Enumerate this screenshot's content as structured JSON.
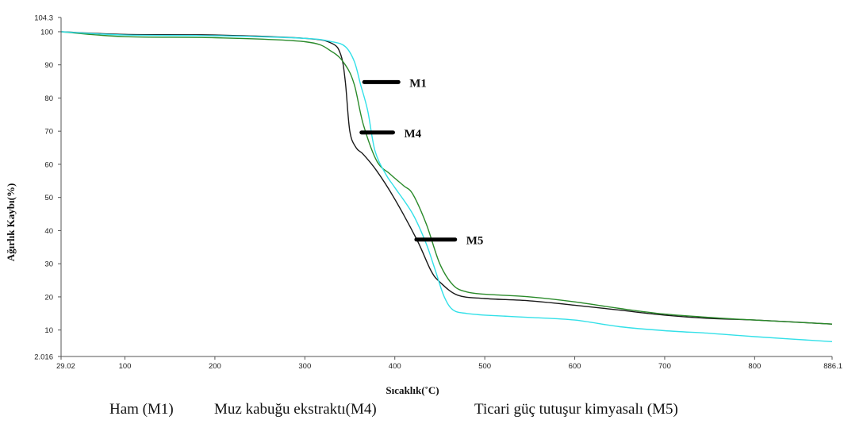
{
  "chart_data": {
    "type": "line",
    "xlabel": "Sıcaklık(˚C)",
    "ylabel": "Ağırlık Kaybı(%)",
    "xlim": [
      29.02,
      886.1
    ],
    "ylim": [
      2.016,
      104.3
    ],
    "x_ticks": [
      "29.02",
      "100",
      "200",
      "300",
      "400",
      "500",
      "600",
      "700",
      "800",
      "886.1"
    ],
    "y_ticks": [
      "104.3",
      "100",
      "90",
      "80",
      "70",
      "60",
      "50",
      "40",
      "30",
      "20",
      "10",
      "2.016"
    ],
    "grid": false,
    "series": [
      {
        "name": "M1",
        "color": "#1a1a1a",
        "points": [
          [
            29.02,
            100
          ],
          [
            100,
            99.2
          ],
          [
            200,
            99
          ],
          [
            300,
            98
          ],
          [
            330,
            96.5
          ],
          [
            340,
            93
          ],
          [
            345,
            85
          ],
          [
            350,
            70
          ],
          [
            357,
            65
          ],
          [
            365,
            63
          ],
          [
            380,
            58
          ],
          [
            400,
            49.5
          ],
          [
            425,
            37
          ],
          [
            440,
            28
          ],
          [
            450,
            24.5
          ],
          [
            470,
            20.5
          ],
          [
            500,
            19.5
          ],
          [
            550,
            18.8
          ],
          [
            600,
            17.5
          ],
          [
            650,
            16
          ],
          [
            700,
            14.5
          ],
          [
            750,
            13.5
          ],
          [
            800,
            13
          ],
          [
            886.1,
            11.8
          ]
        ]
      },
      {
        "name": "M4",
        "color": "#2a8a2a",
        "points": [
          [
            29.02,
            100
          ],
          [
            100,
            98.5
          ],
          [
            200,
            98.2
          ],
          [
            300,
            97
          ],
          [
            330,
            94
          ],
          [
            345,
            90
          ],
          [
            355,
            84
          ],
          [
            365,
            72
          ],
          [
            380,
            61
          ],
          [
            395,
            57
          ],
          [
            410,
            53.5
          ],
          [
            420,
            51
          ],
          [
            435,
            42
          ],
          [
            450,
            30
          ],
          [
            465,
            23.5
          ],
          [
            480,
            21.5
          ],
          [
            500,
            20.8
          ],
          [
            550,
            20
          ],
          [
            600,
            18.5
          ],
          [
            650,
            16.5
          ],
          [
            700,
            14.8
          ],
          [
            750,
            13.8
          ],
          [
            800,
            13
          ],
          [
            886.1,
            11.8
          ]
        ]
      },
      {
        "name": "M5",
        "color": "#33e0e8",
        "points": [
          [
            29.02,
            100
          ],
          [
            100,
            99
          ],
          [
            200,
            98.8
          ],
          [
            300,
            98
          ],
          [
            330,
            97
          ],
          [
            345,
            95.5
          ],
          [
            355,
            91
          ],
          [
            362,
            84
          ],
          [
            370,
            76
          ],
          [
            378,
            64
          ],
          [
            390,
            57
          ],
          [
            400,
            53
          ],
          [
            420,
            45
          ],
          [
            435,
            36
          ],
          [
            445,
            28
          ],
          [
            455,
            20
          ],
          [
            465,
            16
          ],
          [
            480,
            15
          ],
          [
            500,
            14.5
          ],
          [
            550,
            13.8
          ],
          [
            600,
            13
          ],
          [
            650,
            11
          ],
          [
            700,
            9.8
          ],
          [
            750,
            9
          ],
          [
            800,
            8
          ],
          [
            886.1,
            6.5
          ]
        ]
      }
    ],
    "annotations": [
      {
        "label": "M1",
        "x_start": 366,
        "x_end": 404,
        "y": 84.8
      },
      {
        "label": "M4",
        "x_start": 363,
        "x_end": 398,
        "y": 69.6
      },
      {
        "label": "M5",
        "x_start": 424,
        "x_end": 467,
        "y": 37.3
      }
    ],
    "legend_position": "bottom"
  },
  "caption": {
    "items": [
      "Ham (M1)",
      "Muz kabuğu ekstraktı(M4)",
      "Ticari güç tutuşur kimyasalı (M5)"
    ]
  }
}
